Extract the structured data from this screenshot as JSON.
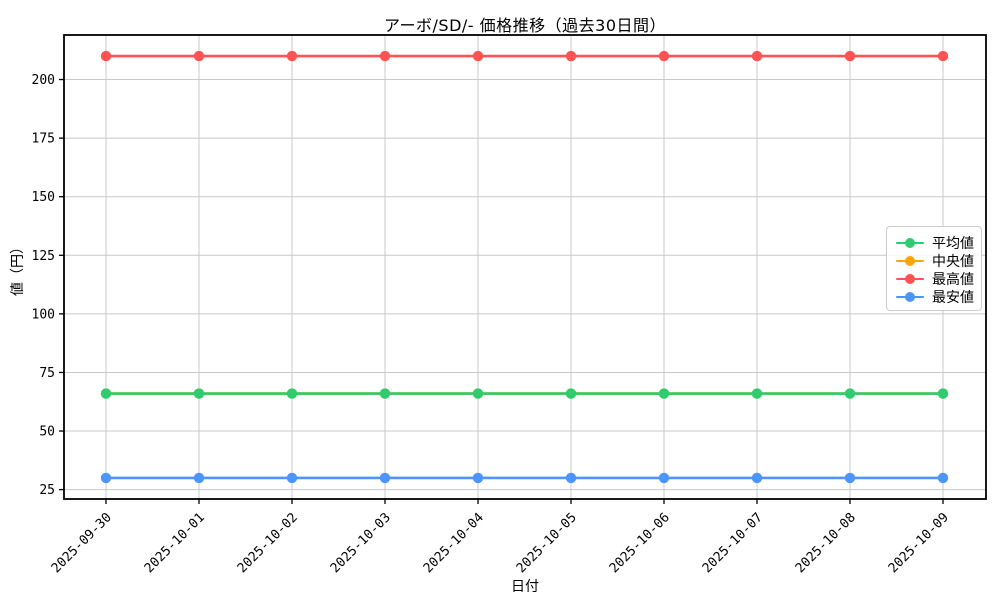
{
  "chart_data": {
    "type": "line",
    "title": "アーボ/SD/- 価格推移（過去30日間）",
    "xlabel": "日付",
    "ylabel": "値（円）",
    "x": [
      "2025-09-30",
      "2025-10-01",
      "2025-10-02",
      "2025-10-03",
      "2025-10-04",
      "2025-10-05",
      "2025-10-06",
      "2025-10-07",
      "2025-10-08",
      "2025-10-09"
    ],
    "yticks": [
      25,
      50,
      75,
      100,
      125,
      150,
      175,
      200
    ],
    "ylim": [
      21,
      219
    ],
    "grid": true,
    "legend_position": "center right",
    "series": [
      {
        "key": "mean",
        "name": "平均値",
        "color": "#2ecc71",
        "values": [
          66,
          66,
          66,
          66,
          66,
          66,
          66,
          66,
          66,
          66
        ]
      },
      {
        "key": "median",
        "name": "中央値",
        "color": "#ffa502",
        "values": [
          66,
          66,
          66,
          66,
          66,
          66,
          66,
          66,
          66,
          66
        ]
      },
      {
        "key": "max",
        "name": "最高値",
        "color": "#ff5252",
        "values": [
          210,
          210,
          210,
          210,
          210,
          210,
          210,
          210,
          210,
          210
        ]
      },
      {
        "key": "min",
        "name": "最安値",
        "color": "#4d94ff",
        "values": [
          30,
          30,
          30,
          30,
          30,
          30,
          30,
          30,
          30,
          30
        ]
      }
    ],
    "colors": {
      "grid": "#c9c9c9",
      "spine": "#000000",
      "text": "#000000"
    }
  }
}
